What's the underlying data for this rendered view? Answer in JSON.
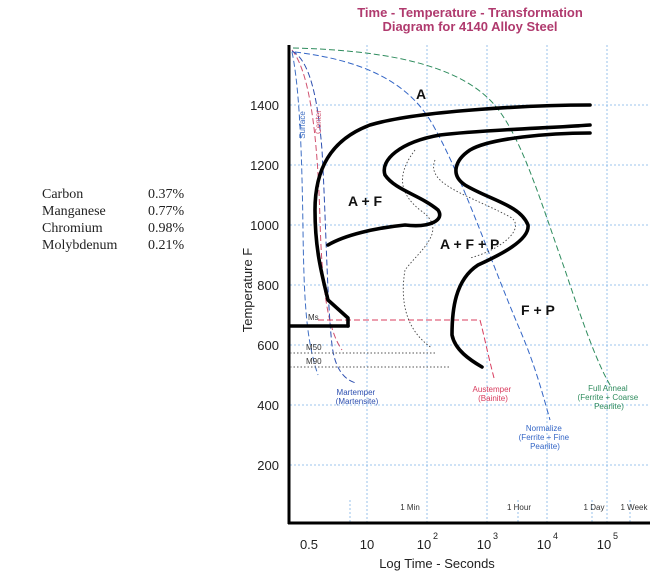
{
  "title": {
    "line1": "Time - Temperature - Transformation",
    "line2": "Diagram for 4140 Alloy Steel"
  },
  "composition": [
    {
      "element": "Carbon",
      "value": "0.37%"
    },
    {
      "element": "Manganese",
      "value": "0.77%"
    },
    {
      "element": "Chromium",
      "value": "0.98%"
    },
    {
      "element": "Molybdenum",
      "value": "0.21%"
    }
  ],
  "axes": {
    "ylabel": "Temperature F",
    "xlabel": "Log Time - Seconds",
    "yticks": [
      "200",
      "400",
      "600",
      "800",
      "1000",
      "1200",
      "1400"
    ],
    "xticks": [
      "0.5",
      "10",
      "10",
      "10",
      "10",
      "10"
    ],
    "xtick_exponents": [
      "",
      "",
      "2",
      "3",
      "4",
      "5"
    ],
    "time_marks": [
      "1 Min",
      "1 Hour",
      "1 Day",
      "1 Week"
    ]
  },
  "regions": {
    "a": "A",
    "af": "A + F",
    "afp": "A + F + P",
    "fp": "F + P"
  },
  "curve_labels": {
    "surface": "Surface",
    "center": "Center",
    "ms": "Ms",
    "m50": "M50",
    "m90": "M90"
  },
  "treatments": {
    "martemper": {
      "line1": "Martemper",
      "line2": "(Martensite)"
    },
    "austemper": {
      "line1": "Austemper",
      "line2": "(Bainite)"
    },
    "full_anneal": {
      "line1": "Full Anneal",
      "line2": "(Ferrite + Coarse",
      "line3": "Pearlite)"
    },
    "normalize": {
      "line1": "Normalize",
      "line2": "(Ferrite + Fine",
      "line3": "Pearlite)"
    }
  },
  "colors": {
    "title": "#b03a6e",
    "grid": "#7fb4e6",
    "surface": "#3f6fc4",
    "center": "#d0506e",
    "martemper": "#2d4fb0",
    "austemper": "#d83c5e",
    "full_anneal": "#2f8c5e",
    "normalize": "#3466c6",
    "dashed": "#6d93d6"
  }
}
